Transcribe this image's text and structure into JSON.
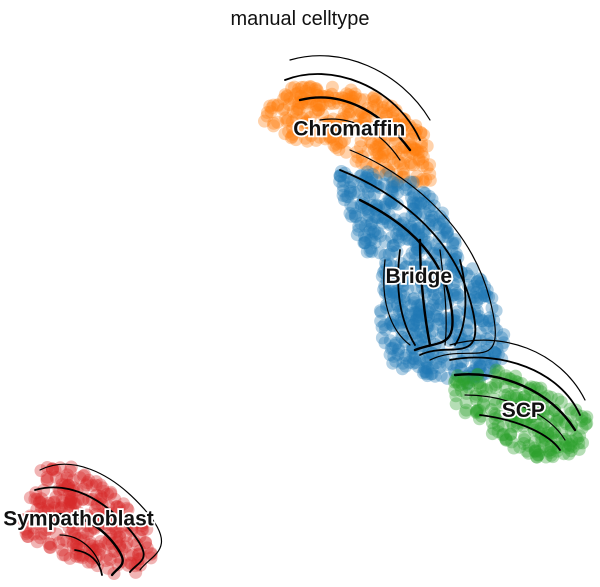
{
  "chart_data": {
    "type": "scatter",
    "title": "manual celltype",
    "xlabel": "",
    "ylabel": "",
    "grid": false,
    "axes_visible": false,
    "legend": "on data",
    "overlay": "velocity streamlines",
    "xlim": [
      0,
      100
    ],
    "ylim": [
      0,
      100
    ],
    "series": [
      {
        "name": "Chromaffin",
        "color": "#ff7f0e",
        "region": [
          [
            43,
            86
          ],
          [
            49,
            92
          ],
          [
            56,
            92
          ],
          [
            64,
            89
          ],
          [
            71,
            83
          ],
          [
            72,
            74
          ],
          [
            65,
            74
          ],
          [
            56,
            80
          ],
          [
            48,
            82
          ]
        ]
      },
      {
        "name": "Bridge",
        "color": "#1f77b4",
        "region": [
          [
            56,
            76
          ],
          [
            63,
            76
          ],
          [
            70,
            74
          ],
          [
            74,
            68
          ],
          [
            78,
            60
          ],
          [
            82,
            53
          ],
          [
            84,
            46
          ],
          [
            84,
            40
          ],
          [
            78,
            37
          ],
          [
            70,
            38
          ],
          [
            65,
            41
          ],
          [
            63,
            48
          ],
          [
            64,
            56
          ],
          [
            59,
            65
          ],
          [
            57,
            71
          ]
        ]
      },
      {
        "name": "SCP",
        "color": "#2ca02c",
        "region": [
          [
            75,
            39
          ],
          [
            82,
            40
          ],
          [
            88,
            38
          ],
          [
            94,
            34
          ],
          [
            98,
            31
          ],
          [
            97,
            25
          ],
          [
            91,
            23
          ],
          [
            84,
            26
          ],
          [
            76,
            33
          ]
        ]
      },
      {
        "name": "Sympathoblast",
        "color": "#d62728",
        "region": [
          [
            7,
            22
          ],
          [
            12,
            22
          ],
          [
            18,
            18
          ],
          [
            24,
            12
          ],
          [
            26,
            6
          ],
          [
            22,
            2
          ],
          [
            14,
            3
          ],
          [
            8,
            7
          ],
          [
            3,
            10
          ],
          [
            4,
            14
          ],
          [
            6,
            19
          ]
        ]
      }
    ]
  }
}
